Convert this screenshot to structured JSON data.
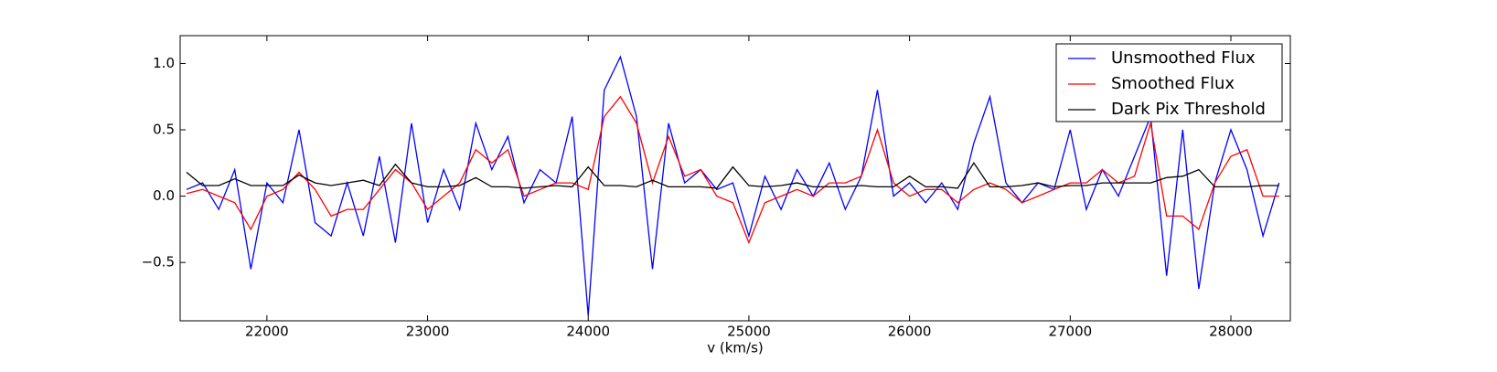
{
  "chart_data": {
    "type": "line",
    "xlabel": "v (km/s)",
    "x": [
      21500,
      21600,
      21700,
      21800,
      21900,
      22000,
      22100,
      22200,
      22300,
      22400,
      22500,
      22600,
      22700,
      22800,
      22900,
      23000,
      23100,
      23200,
      23300,
      23400,
      23500,
      23600,
      23700,
      23800,
      23900,
      24000,
      24100,
      24200,
      24300,
      24400,
      24500,
      24600,
      24700,
      24800,
      24900,
      25000,
      25100,
      25200,
      25300,
      25400,
      25500,
      25600,
      25700,
      25800,
      25900,
      26000,
      26100,
      26200,
      26300,
      26400,
      26500,
      26600,
      26700,
      26800,
      26900,
      27000,
      27100,
      27200,
      27300,
      27400,
      27500,
      27600,
      27700,
      27800,
      27900,
      28000,
      28100,
      28200,
      28300
    ],
    "series": [
      {
        "name": "Unsmoothed Flux",
        "color": "#0000ff",
        "values": [
          0.05,
          0.1,
          -0.1,
          0.2,
          -0.55,
          0.1,
          -0.05,
          0.5,
          -0.2,
          -0.3,
          0.1,
          -0.3,
          0.3,
          -0.35,
          0.55,
          -0.2,
          0.2,
          -0.1,
          0.55,
          0.2,
          0.45,
          -0.05,
          0.2,
          0.1,
          0.6,
          -0.9,
          0.8,
          1.05,
          0.6,
          -0.55,
          0.55,
          0.1,
          0.2,
          0.05,
          0.1,
          -0.3,
          0.15,
          -0.1,
          0.2,
          0.0,
          0.25,
          -0.1,
          0.15,
          0.8,
          0.0,
          0.1,
          -0.05,
          0.1,
          -0.1,
          0.4,
          0.75,
          0.1,
          -0.05,
          0.1,
          0.05,
          0.5,
          -0.1,
          0.2,
          0.0,
          0.3,
          0.6,
          -0.6,
          0.5,
          -0.7,
          0.1,
          0.5,
          0.2,
          -0.3,
          0.1
        ]
      },
      {
        "name": "Smoothed Flux",
        "color": "#ff0000",
        "values": [
          0.02,
          0.05,
          0.0,
          -0.05,
          -0.25,
          0.0,
          0.05,
          0.18,
          0.05,
          -0.15,
          -0.1,
          -0.1,
          0.05,
          0.2,
          0.1,
          -0.1,
          0.0,
          0.1,
          0.35,
          0.25,
          0.35,
          0.0,
          0.05,
          0.1,
          0.1,
          0.05,
          0.6,
          0.75,
          0.55,
          0.1,
          0.45,
          0.15,
          0.2,
          0.0,
          -0.05,
          -0.35,
          -0.05,
          0.0,
          0.05,
          0.0,
          0.1,
          0.1,
          0.15,
          0.5,
          0.1,
          0.0,
          0.05,
          0.05,
          -0.05,
          0.05,
          0.1,
          0.05,
          -0.05,
          0.0,
          0.05,
          0.1,
          0.1,
          0.2,
          0.1,
          0.15,
          0.55,
          -0.15,
          -0.15,
          -0.25,
          0.1,
          0.3,
          0.35,
          0.0,
          0.0
        ]
      },
      {
        "name": "Dark Pix Threshold",
        "color": "#000000",
        "values": [
          0.18,
          0.08,
          0.08,
          0.13,
          0.08,
          0.08,
          0.08,
          0.16,
          0.1,
          0.08,
          0.1,
          0.12,
          0.08,
          0.24,
          0.1,
          0.07,
          0.07,
          0.08,
          0.14,
          0.07,
          0.07,
          0.06,
          0.07,
          0.08,
          0.07,
          0.22,
          0.08,
          0.08,
          0.07,
          0.12,
          0.07,
          0.07,
          0.07,
          0.06,
          0.22,
          0.08,
          0.07,
          0.08,
          0.1,
          0.07,
          0.07,
          0.07,
          0.08,
          0.07,
          0.07,
          0.15,
          0.07,
          0.07,
          0.06,
          0.25,
          0.07,
          0.07,
          0.08,
          0.1,
          0.07,
          0.08,
          0.08,
          0.1,
          0.1,
          0.1,
          0.1,
          0.14,
          0.15,
          0.2,
          0.07,
          0.07,
          0.07,
          0.08,
          0.08
        ]
      }
    ],
    "xlim": [
      21460,
      28370
    ],
    "ylim": [
      -0.94,
      1.21
    ],
    "xticks": [
      22000,
      23000,
      24000,
      25000,
      26000,
      27000,
      28000
    ],
    "yticks": [
      {
        "value": -0.5,
        "label": "−0.5"
      },
      {
        "value": 0,
        "label": "0.0"
      },
      0.5,
      {
        "value": 1,
        "label": "1.0"
      }
    ],
    "grid": false,
    "legend": "upper right"
  }
}
